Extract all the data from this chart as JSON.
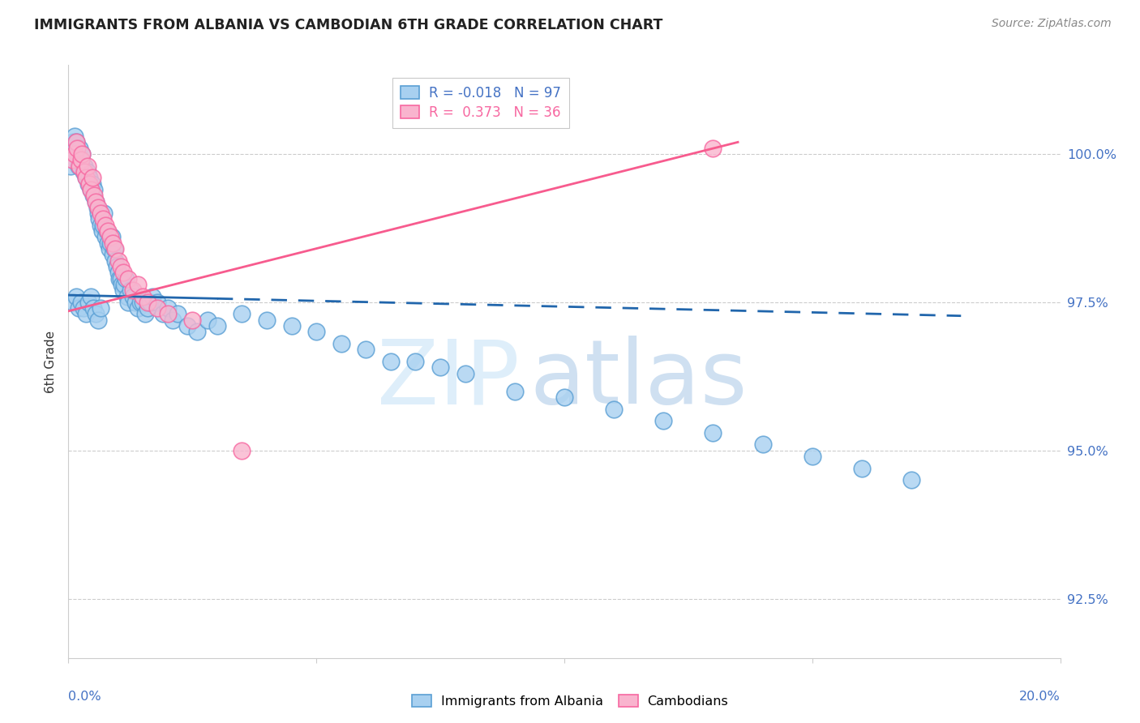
{
  "title": "IMMIGRANTS FROM ALBANIA VS CAMBODIAN 6TH GRADE CORRELATION CHART",
  "source": "Source: ZipAtlas.com",
  "ylabel": "6th Grade",
  "yticks": [
    92.5,
    95.0,
    97.5,
    100.0
  ],
  "ytick_labels": [
    "92.5%",
    "95.0%",
    "97.5%",
    "100.0%"
  ],
  "xlim": [
    0.0,
    20.0
  ],
  "ylim": [
    91.5,
    101.5
  ],
  "legend_blue_r": "-0.018",
  "legend_blue_n": "97",
  "legend_pink_r": "0.373",
  "legend_pink_n": "36",
  "blue_face_color": "#a8d0f0",
  "blue_edge_color": "#5a9fd4",
  "pink_face_color": "#f9b4ce",
  "pink_edge_color": "#f768a1",
  "blue_line_color": "#2166ac",
  "pink_line_color": "#f75b8e",
  "grid_color": "#cccccc",
  "title_color": "#222222",
  "source_color": "#888888",
  "tick_color": "#4472c4",
  "ylabel_color": "#333333",
  "watermark_zip_color": "#d0e8f8",
  "watermark_atlas_color": "#b0cce8",
  "blue_line_x0": 0.0,
  "blue_line_x1": 18.0,
  "blue_line_y0": 97.62,
  "blue_line_y1": 97.27,
  "blue_solid_end": 3.0,
  "pink_line_x0": 0.0,
  "pink_line_x1": 13.5,
  "pink_line_y0": 97.35,
  "pink_line_y1": 100.2,
  "blue_scatter_x": [
    0.05,
    0.08,
    0.1,
    0.12,
    0.15,
    0.18,
    0.2,
    0.22,
    0.25,
    0.28,
    0.3,
    0.32,
    0.35,
    0.38,
    0.4,
    0.42,
    0.45,
    0.48,
    0.5,
    0.52,
    0.55,
    0.58,
    0.6,
    0.62,
    0.65,
    0.68,
    0.7,
    0.72,
    0.75,
    0.78,
    0.8,
    0.82,
    0.85,
    0.88,
    0.9,
    0.92,
    0.95,
    0.98,
    1.0,
    1.02,
    1.05,
    1.08,
    1.1,
    1.12,
    1.15,
    1.18,
    1.2,
    1.25,
    1.3,
    1.35,
    1.4,
    1.45,
    1.5,
    1.55,
    1.6,
    1.65,
    1.7,
    1.8,
    1.9,
    2.0,
    2.1,
    2.2,
    2.4,
    2.6,
    2.8,
    3.0,
    3.5,
    4.0,
    4.5,
    5.0,
    5.5,
    6.0,
    6.5,
    7.0,
    7.5,
    8.0,
    9.0,
    10.0,
    11.0,
    12.0,
    13.0,
    14.0,
    15.0,
    16.0,
    17.0,
    0.1,
    0.15,
    0.2,
    0.25,
    0.3,
    0.35,
    0.4,
    0.45,
    0.5,
    0.55,
    0.6,
    0.65
  ],
  "blue_scatter_y": [
    99.8,
    100.1,
    100.2,
    100.3,
    100.2,
    100.0,
    99.8,
    100.1,
    99.9,
    100.0,
    99.7,
    99.8,
    99.6,
    99.7,
    99.5,
    99.6,
    99.4,
    99.5,
    99.3,
    99.4,
    99.2,
    99.1,
    99.0,
    98.9,
    98.8,
    98.7,
    98.8,
    99.0,
    98.6,
    98.7,
    98.5,
    98.4,
    98.5,
    98.6,
    98.3,
    98.4,
    98.2,
    98.1,
    98.0,
    97.9,
    97.9,
    97.8,
    97.7,
    97.8,
    97.9,
    97.6,
    97.5,
    97.7,
    97.6,
    97.5,
    97.4,
    97.5,
    97.5,
    97.3,
    97.4,
    97.5,
    97.6,
    97.5,
    97.3,
    97.4,
    97.2,
    97.3,
    97.1,
    97.0,
    97.2,
    97.1,
    97.3,
    97.2,
    97.1,
    97.0,
    96.8,
    96.7,
    96.5,
    96.5,
    96.4,
    96.3,
    96.0,
    95.9,
    95.7,
    95.5,
    95.3,
    95.1,
    94.9,
    94.7,
    94.5,
    97.5,
    97.6,
    97.4,
    97.5,
    97.4,
    97.3,
    97.5,
    97.6,
    97.4,
    97.3,
    97.2,
    97.4
  ],
  "pink_scatter_x": [
    0.08,
    0.12,
    0.15,
    0.18,
    0.22,
    0.25,
    0.28,
    0.32,
    0.35,
    0.38,
    0.42,
    0.45,
    0.48,
    0.52,
    0.55,
    0.6,
    0.65,
    0.7,
    0.75,
    0.8,
    0.85,
    0.9,
    0.95,
    1.0,
    1.05,
    1.1,
    1.2,
    1.3,
    1.4,
    1.5,
    1.6,
    1.8,
    2.0,
    2.5,
    3.5,
    13.0
  ],
  "pink_scatter_y": [
    99.9,
    100.0,
    100.2,
    100.1,
    99.8,
    99.9,
    100.0,
    99.7,
    99.6,
    99.8,
    99.5,
    99.4,
    99.6,
    99.3,
    99.2,
    99.1,
    99.0,
    98.9,
    98.8,
    98.7,
    98.6,
    98.5,
    98.4,
    98.2,
    98.1,
    98.0,
    97.9,
    97.7,
    97.8,
    97.6,
    97.5,
    97.4,
    97.3,
    97.2,
    95.0,
    100.1
  ]
}
